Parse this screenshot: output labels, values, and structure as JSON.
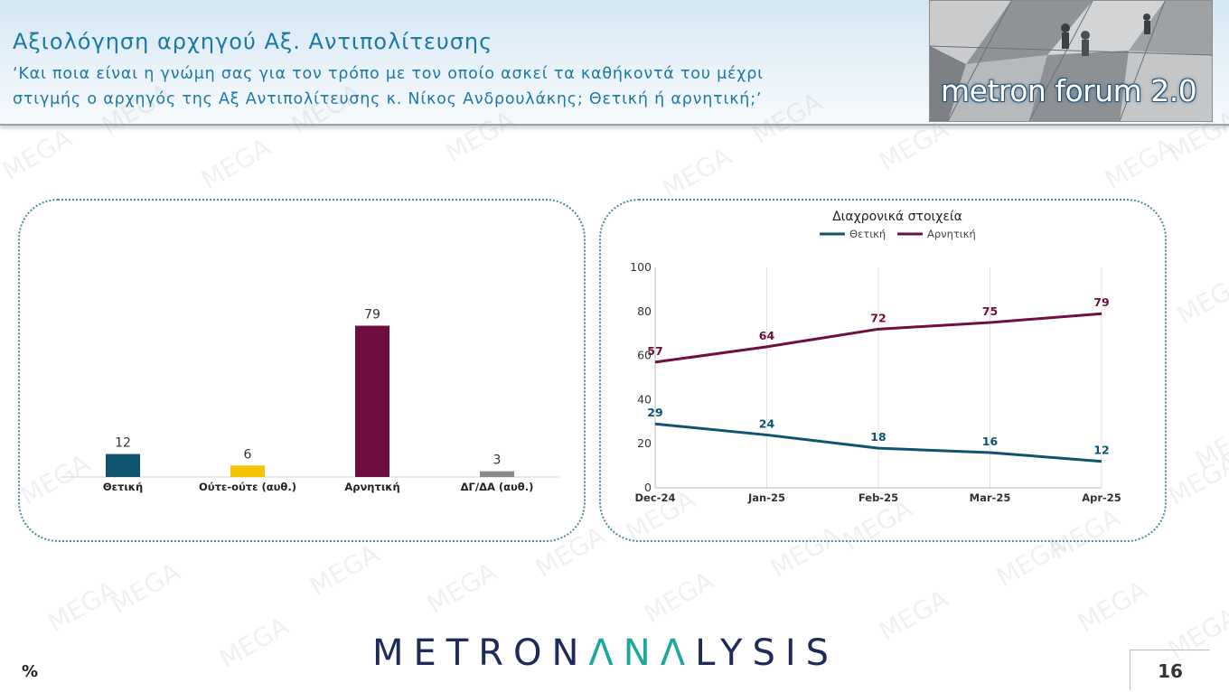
{
  "header": {
    "title": "Αξιολόγηση αρχηγού Αξ. Αντιπολίτευσης",
    "question_line1": "‘Και ποια είναι η γνώμη σας για τον τρόπο με τον οποίο ασκεί τα καθήκοντά του μέχρι",
    "question_line2": "στιγμής ο αρχηγός της Αξ Αντιπολίτευσης κ. Νίκος Ανδρουλάκης; Θετική ή αρνητική;’"
  },
  "logo": {
    "text": "metron forum 2.0"
  },
  "watermark_text": "MEGA",
  "colors": {
    "positive": "#0e5470",
    "neutral": "#f5c400",
    "negative": "#6e0f3f",
    "dkna": "#8a8a8a",
    "accent": "#1aa89c",
    "navy": "#1e2a5a"
  },
  "chart_data": [
    {
      "type": "bar",
      "categories": [
        "Θετική",
        "Ούτε-ούτε (αυθ.)",
        "Αρνητική",
        "ΔΓ/ΔΑ (αυθ.)"
      ],
      "values": [
        12,
        6,
        79,
        3
      ],
      "ylim": [
        0,
        100
      ]
    },
    {
      "type": "line",
      "title": "Διαχρονικά στοιχεία",
      "x": [
        "Dec-24",
        "Jan-25",
        "Feb-25",
        "Mar-25",
        "Apr-25"
      ],
      "series": [
        {
          "name": "Θετική",
          "values": [
            29,
            24,
            18,
            16,
            12
          ]
        },
        {
          "name": "Αρνητική",
          "values": [
            57,
            64,
            72,
            75,
            79
          ]
        }
      ],
      "yticks": [
        0,
        20,
        40,
        60,
        80,
        100
      ],
      "ylim": [
        0,
        100
      ],
      "grid": "vertical",
      "legend": "top-center"
    }
  ],
  "footer": {
    "brand_part1": "METRON",
    "brand_part2": "ΛNΛ",
    "brand_part3": "LYSIS",
    "unit": "%",
    "page_number": "16"
  }
}
